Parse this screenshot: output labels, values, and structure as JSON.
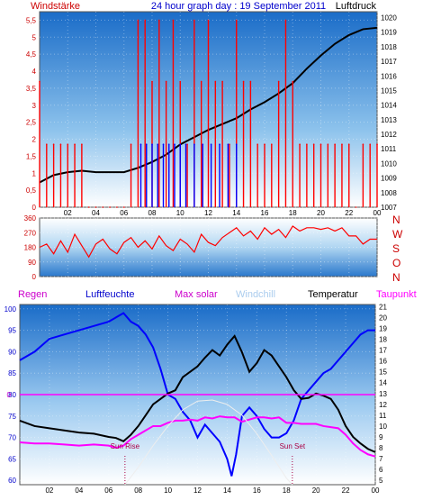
{
  "chart_data": [
    {
      "type": "line",
      "title": "24 hour graph day : 19 September 2011",
      "left_label": "Windstärke",
      "right_label": "Luftdruck",
      "left_ticks": [
        "0",
        "0,5",
        "1",
        "1,5",
        "2",
        "2,5",
        "3",
        "3,5",
        "4",
        "4,5",
        "5",
        "5,5"
      ],
      "right_ticks": [
        "1007",
        "1008",
        "1009",
        "1010",
        "1011",
        "1012",
        "1013",
        "1014",
        "1015",
        "1016",
        "1017",
        "1018",
        "1019",
        "1020"
      ],
      "x_ticks": [
        "02",
        "04",
        "06",
        "08",
        "10",
        "12",
        "14",
        "16",
        "18",
        "20",
        "22",
        "00"
      ],
      "xlim": [
        0,
        24
      ],
      "ylim_left": [
        0,
        5.75
      ],
      "ylim_right": [
        1007,
        1020.4
      ],
      "series": [
        {
          "name": "Luftdruck",
          "axis": "right",
          "color": "#000000",
          "x": [
            0,
            1,
            2,
            3,
            4,
            5,
            6,
            7,
            8,
            9,
            10,
            11,
            12,
            13,
            14,
            15,
            16,
            17,
            18,
            19,
            20,
            21,
            22,
            23,
            24
          ],
          "y": [
            1008.7,
            1009.2,
            1009.4,
            1009.5,
            1009.4,
            1009.4,
            1009.4,
            1009.7,
            1010.1,
            1010.6,
            1011.3,
            1011.8,
            1012.3,
            1012.7,
            1013.1,
            1013.7,
            1014.2,
            1014.8,
            1015.5,
            1016.5,
            1017.4,
            1018.2,
            1018.8,
            1019.2,
            1019.3
          ]
        },
        {
          "name": "Wind",
          "axis": "left",
          "color": "#ff0000",
          "x": [
            0,
            0.5,
            1,
            1.5,
            2,
            2.5,
            3,
            3.5,
            4,
            4.5,
            5,
            5.5,
            6,
            6.5,
            7,
            7.5,
            8,
            8.5,
            9,
            9.5,
            10,
            10.5,
            11,
            11.5,
            12,
            12.5,
            13,
            13.5,
            14,
            14.5,
            15,
            15.5,
            16,
            16.5,
            17,
            17.5,
            18,
            18.5,
            19,
            19.5,
            20,
            20.5,
            21,
            21.5,
            22,
            22.5,
            23,
            23.5,
            24
          ],
          "y": [
            3.7,
            1.85,
            1.85,
            1.85,
            1.85,
            1.85,
            1.85,
            0,
            0,
            0,
            0,
            0,
            0,
            1.85,
            5.5,
            5.5,
            3.7,
            5.5,
            3.7,
            5.5,
            3.7,
            1.85,
            5.5,
            3.7,
            5.5,
            3.7,
            3.7,
            1.85,
            5.5,
            3.7,
            3.7,
            1.85,
            1.85,
            1.85,
            3.7,
            5.5,
            3.7,
            1.85,
            1.85,
            1.85,
            1.85,
            1.85,
            1.85,
            1.85,
            1.85,
            0,
            1.85,
            1.85,
            1.85
          ]
        },
        {
          "name": "Wind (blue)",
          "axis": "left",
          "color": "#0000ff",
          "x": [
            7.2,
            7.6,
            8.0,
            8.4,
            8.8,
            9.2,
            9.6,
            10.0,
            10.4,
            11.0,
            11.6,
            12.2,
            12.8,
            13.4,
            14.0
          ],
          "y": [
            1.85,
            1.85,
            1.85,
            1.85,
            1.85,
            1.85,
            1.85,
            1.85,
            1.85,
            1.85,
            1.85,
            1.85,
            1.85,
            1.85,
            1.85
          ]
        }
      ]
    },
    {
      "type": "line",
      "left_ticks": [
        "0",
        "90",
        "180",
        "270",
        "360"
      ],
      "right_letters": [
        "N",
        "W",
        "S",
        "O",
        "N"
      ],
      "ylim": [
        0,
        360
      ],
      "series": [
        {
          "name": "Wind direction",
          "color": "#ff0000",
          "x": [
            0,
            0.5,
            1,
            1.5,
            2,
            2.5,
            3,
            3.5,
            4,
            4.5,
            5,
            5.5,
            6,
            6.5,
            7,
            7.5,
            8,
            8.5,
            9,
            9.5,
            10,
            10.5,
            11,
            11.5,
            12,
            12.5,
            13,
            13.5,
            14,
            14.5,
            15,
            15.5,
            16,
            16.5,
            17,
            17.5,
            18,
            18.5,
            19,
            19.5,
            20,
            20.5,
            21,
            21.5,
            22,
            22.5,
            23,
            23.5,
            24
          ],
          "y": [
            180,
            200,
            140,
            220,
            150,
            260,
            190,
            120,
            200,
            230,
            170,
            140,
            210,
            240,
            180,
            220,
            170,
            250,
            190,
            160,
            230,
            200,
            150,
            260,
            210,
            190,
            240,
            270,
            300,
            250,
            280,
            230,
            300,
            260,
            290,
            240,
            310,
            280,
            300,
            300,
            290,
            300,
            280,
            300,
            250,
            250,
            200,
            230,
            230
          ]
        }
      ]
    },
    {
      "type": "line",
      "legend": [
        "Regen",
        "Luftfeuchte",
        "Max solar",
        "Windchill",
        "Temperatur",
        "Taupunkt"
      ],
      "legend_colors": [
        "#cc00cc",
        "#0000cc",
        "#cc00cc",
        "#aaccee",
        "#000000",
        "#ff00ff"
      ],
      "left_ticks": [
        "60",
        "65",
        "70",
        "75",
        "80",
        "85",
        "90",
        "95",
        "100"
      ],
      "right_ticks": [
        "5",
        "6",
        "7",
        "8",
        "9",
        "10",
        "11",
        "12",
        "13",
        "14",
        "15",
        "16",
        "17",
        "18",
        "19",
        "20",
        "21"
      ],
      "rain_zero_label": "0",
      "annotations": [
        "Sun Rise",
        "Sun Set"
      ],
      "x_ticks": [
        "02",
        "04",
        "06",
        "08",
        "10",
        "12",
        "14",
        "16",
        "18",
        "20",
        "22",
        "00"
      ],
      "xlim": [
        0,
        24
      ],
      "ylim_left": [
        59,
        101
      ],
      "ylim_right": [
        4.6,
        21.2
      ],
      "series": [
        {
          "name": "Luftfeuchte",
          "axis": "left",
          "color": "#0000ff",
          "x": [
            0,
            1,
            2,
            3,
            4,
            5,
            6,
            6.5,
            7,
            7.5,
            8,
            8.5,
            9,
            9.5,
            10,
            10.5,
            11,
            11.5,
            12,
            12.5,
            13,
            13.5,
            14,
            14.3,
            14.6,
            15,
            15.5,
            16,
            16.5,
            17,
            17.5,
            18,
            18.5,
            19,
            19.5,
            20,
            20.5,
            21,
            21.5,
            22,
            22.5,
            23,
            23.5,
            24
          ],
          "y": [
            88,
            90,
            93,
            94,
            95,
            96,
            97,
            98,
            99,
            97,
            96,
            94,
            91,
            86,
            80,
            79,
            76,
            74,
            70,
            73,
            71,
            69,
            65,
            61,
            66,
            75,
            77,
            75,
            72,
            70,
            70,
            71,
            74,
            79,
            81,
            83,
            85,
            86,
            88,
            90,
            92,
            94,
            95,
            95
          ]
        },
        {
          "name": "Temperatur",
          "axis": "right",
          "color": "#000000",
          "x": [
            0,
            1,
            2,
            3,
            4,
            5,
            6,
            6.5,
            7,
            7.5,
            8,
            8.5,
            9,
            9.5,
            10,
            10.5,
            11,
            11.5,
            12,
            12.5,
            13,
            13.5,
            14,
            14.5,
            15,
            15.5,
            16,
            16.5,
            17,
            17.5,
            18,
            18.5,
            19,
            19.5,
            20,
            20.5,
            21,
            21.5,
            22,
            22.5,
            23,
            23.5,
            24
          ],
          "y": [
            10.5,
            10,
            9.8,
            9.6,
            9.4,
            9.3,
            9,
            8.9,
            8.6,
            9.2,
            10,
            11,
            12,
            12.5,
            13,
            13.3,
            14.5,
            15,
            15.5,
            16.3,
            17,
            16.5,
            17.5,
            18.3,
            16.8,
            15,
            15.8,
            17,
            16.5,
            15.5,
            14.5,
            13.3,
            12.5,
            12.6,
            13,
            12.8,
            12.5,
            11.5,
            10,
            9,
            8.4,
            7.9,
            7.6
          ]
        },
        {
          "name": "Taupunkt",
          "axis": "right",
          "color": "#ff00ff",
          "x": [
            0,
            1,
            2,
            3,
            4,
            5,
            6,
            6.5,
            7,
            7.5,
            8,
            8.5,
            9,
            9.5,
            10,
            10.5,
            11,
            11.5,
            12,
            12.5,
            13,
            13.5,
            14,
            14.5,
            15,
            15.5,
            16,
            16.5,
            17,
            17.5,
            18,
            18.5,
            19,
            19.5,
            20,
            20.5,
            21,
            21.5,
            22,
            22.5,
            23,
            23.5,
            24
          ],
          "y": [
            8.5,
            8.4,
            8.4,
            8.3,
            8.2,
            8.3,
            8.2,
            8,
            8.2,
            8.8,
            9.2,
            9.6,
            10,
            10,
            10.3,
            10.5,
            10.5,
            10.6,
            10.5,
            10.8,
            10.7,
            10.9,
            10.8,
            10.8,
            10.4,
            10.6,
            10.8,
            10.8,
            10.7,
            10.8,
            10.3,
            10.3,
            10.2,
            10.2,
            10.2,
            10,
            9.9,
            9.8,
            9.2,
            8.4,
            7.8,
            7.4,
            7.2
          ]
        },
        {
          "name": "Max solar",
          "axis": "right",
          "color": "#eeeeee",
          "x": [
            7.1,
            8,
            9,
            10,
            11,
            12,
            13,
            14,
            15,
            16,
            17,
            18,
            18.4
          ],
          "y": [
            4.6,
            6.2,
            8.2,
            10,
            11.5,
            12.3,
            12.4,
            12,
            11,
            9.3,
            7.3,
            5.2,
            4.6
          ]
        },
        {
          "name": "Regen",
          "axis": "left",
          "color": "#ff00ff",
          "x": [
            0,
            24
          ],
          "y": [
            80,
            80
          ]
        }
      ],
      "sunrise_hour": 7.1,
      "sunset_hour": 18.4
    }
  ]
}
